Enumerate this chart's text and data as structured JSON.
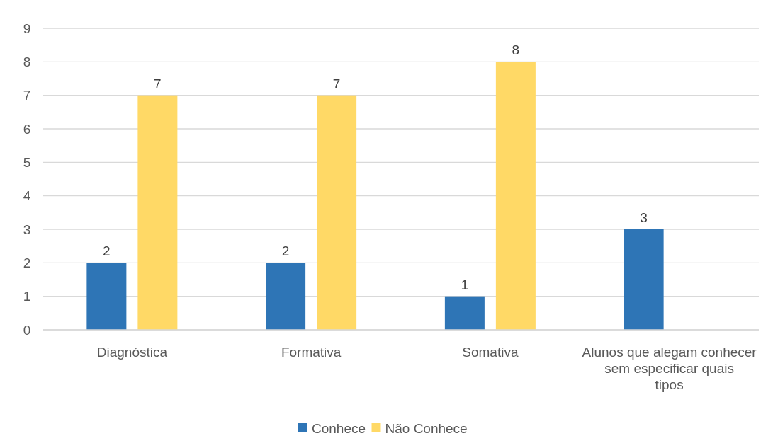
{
  "chart_data": {
    "type": "bar",
    "categories": [
      "Diagnóstica",
      "Formativa",
      "Somativa",
      "Alunos que alegam conhecer sem especificar quais tipos"
    ],
    "series": [
      {
        "name": "Conhece",
        "color": "#2e75b6",
        "values": [
          2,
          2,
          1,
          3
        ]
      },
      {
        "name": "Não Conhece",
        "color": "#ffd966",
        "values": [
          7,
          7,
          8,
          null
        ]
      }
    ],
    "ylim": [
      0,
      9
    ],
    "yticks": [
      0,
      1,
      2,
      3,
      4,
      5,
      6,
      7,
      8,
      9
    ],
    "grid": "y",
    "legend": "bottom",
    "data_labels": true
  }
}
